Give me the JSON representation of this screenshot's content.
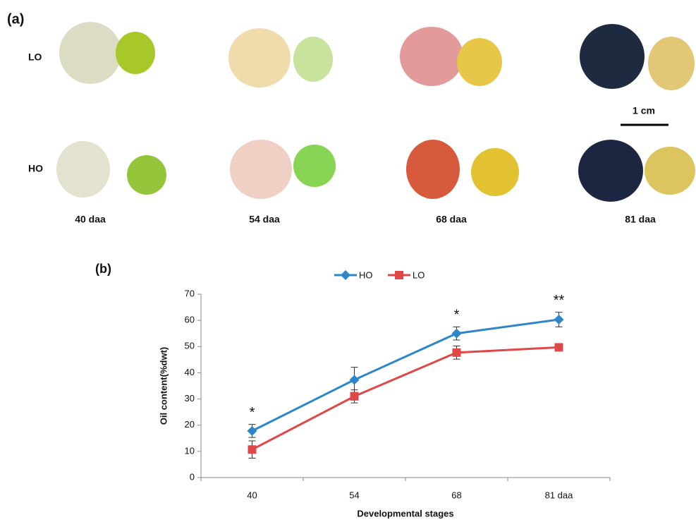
{
  "figure": {
    "panel_a": "(a)",
    "rows": [
      "LO",
      "HO"
    ],
    "stages": [
      "40 daa",
      "54 daa",
      "68 daa",
      "81 daa"
    ],
    "scale_bar": "1 cm"
  },
  "chart_data": {
    "type": "line",
    "panel_label": "(b)",
    "y_label": "Oil content(%dwt)",
    "x_label": "Developmental stages",
    "categories": [
      "40",
      "54",
      "68",
      "81 daa"
    ],
    "series": [
      {
        "name": "HO",
        "color": "#2e86c8",
        "marker": "diamond",
        "values": [
          17.8,
          37.3,
          55.0,
          60.3
        ],
        "errors": [
          2.5,
          4.8,
          2.5,
          2.8
        ]
      },
      {
        "name": "LO",
        "color": "#e04848",
        "marker": "square",
        "values": [
          10.7,
          31.0,
          47.7,
          49.7
        ],
        "errors": [
          3.3,
          2.5,
          2.5,
          1.0
        ]
      }
    ],
    "annotations": [
      "*",
      null,
      "*",
      "**"
    ],
    "ylim": [
      0,
      70
    ],
    "yticks": [
      0,
      10,
      20,
      30,
      40,
      50,
      60,
      70
    ],
    "legend": "top"
  }
}
